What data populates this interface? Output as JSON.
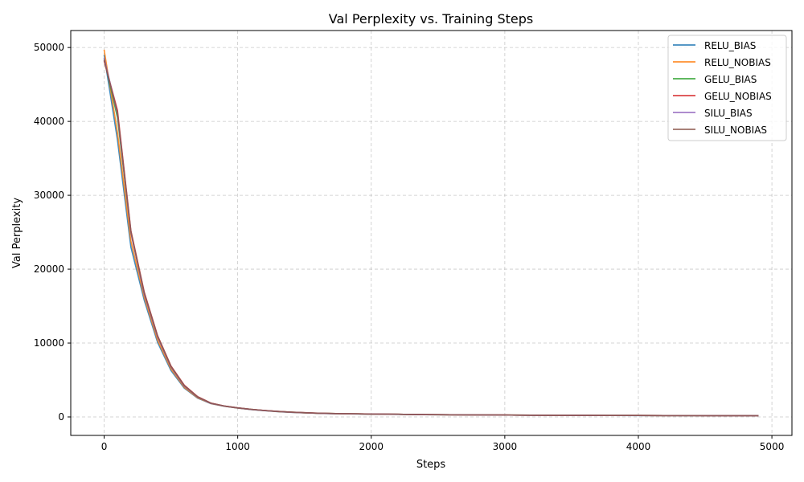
{
  "chart_data": {
    "type": "line",
    "title": "Val Perplexity vs. Training Steps",
    "xlabel": "Steps",
    "ylabel": "Val Perplexity",
    "xlim": [
      -250,
      5150
    ],
    "ylim": [
      -2500,
      52300
    ],
    "xticks": [
      0,
      1000,
      2000,
      3000,
      4000,
      5000
    ],
    "yticks": [
      0,
      10000,
      20000,
      30000,
      40000,
      50000
    ],
    "grid": true,
    "legend_position": "top-right",
    "x": [
      0,
      100,
      200,
      300,
      400,
      500,
      600,
      700,
      800,
      900,
      1000,
      1100,
      1200,
      1300,
      1400,
      1500,
      1600,
      1700,
      1800,
      1900,
      2000,
      2200,
      2400,
      2600,
      2800,
      3000,
      3200,
      3400,
      3600,
      3800,
      4000,
      4200,
      4400,
      4600,
      4800,
      4900
    ],
    "series": [
      {
        "name": "RELU_BIAS",
        "color": "#1f77b4",
        "values": [
          49000,
          37500,
          23000,
          15800,
          10100,
          6300,
          3900,
          2550,
          1800,
          1450,
          1200,
          1000,
          850,
          720,
          620,
          550,
          490,
          450,
          420,
          400,
          380,
          350,
          300,
          290,
          270,
          250,
          230,
          210,
          200,
          195,
          190,
          185,
          180,
          175,
          170,
          165
        ]
      },
      {
        "name": "RELU_NOBIAS",
        "color": "#ff7f0e",
        "values": [
          49700,
          38500,
          23800,
          16200,
          10400,
          6500,
          4000,
          2600,
          1820,
          1460,
          1210,
          1010,
          860,
          730,
          630,
          560,
          500,
          460,
          430,
          410,
          390,
          355,
          305,
          292,
          272,
          252,
          232,
          212,
          202,
          197,
          192,
          187,
          182,
          177,
          172,
          167
        ]
      },
      {
        "name": "GELU_BIAS",
        "color": "#2ca02c",
        "values": [
          48500,
          40500,
          25000,
          16700,
          10900,
          6800,
          4200,
          2700,
          1850,
          1470,
          1220,
          1020,
          870,
          740,
          640,
          570,
          505,
          465,
          435,
          415,
          395,
          360,
          310,
          295,
          275,
          255,
          235,
          215,
          205,
          198,
          193,
          188,
          183,
          178,
          173,
          168
        ]
      },
      {
        "name": "GELU_NOBIAS",
        "color": "#d62728",
        "values": [
          48200,
          41500,
          25200,
          16900,
          11000,
          6900,
          4300,
          2750,
          1870,
          1480,
          1230,
          1030,
          880,
          750,
          650,
          575,
          510,
          470,
          440,
          418,
          398,
          362,
          312,
          297,
          277,
          257,
          237,
          217,
          207,
          199,
          194,
          189,
          184,
          179,
          174,
          169
        ]
      },
      {
        "name": "SILU_BIAS",
        "color": "#9467bd",
        "values": [
          48600,
          41000,
          24900,
          16600,
          10800,
          6750,
          4150,
          2680,
          1840,
          1465,
          1215,
          1015,
          865,
          735,
          635,
          565,
          502,
          462,
          432,
          412,
          392,
          358,
          308,
          294,
          274,
          254,
          234,
          214,
          204,
          198,
          193,
          188,
          183,
          178,
          173,
          168
        ]
      },
      {
        "name": "SILU_NOBIAS",
        "color": "#8c564b",
        "values": [
          48300,
          41200,
          25100,
          16800,
          10950,
          6850,
          4250,
          2720,
          1860,
          1475,
          1225,
          1025,
          875,
          745,
          645,
          572,
          508,
          468,
          438,
          416,
          396,
          361,
          311,
          296,
          276,
          256,
          236,
          216,
          206,
          199,
          194,
          189,
          184,
          179,
          174,
          169
        ]
      }
    ]
  }
}
